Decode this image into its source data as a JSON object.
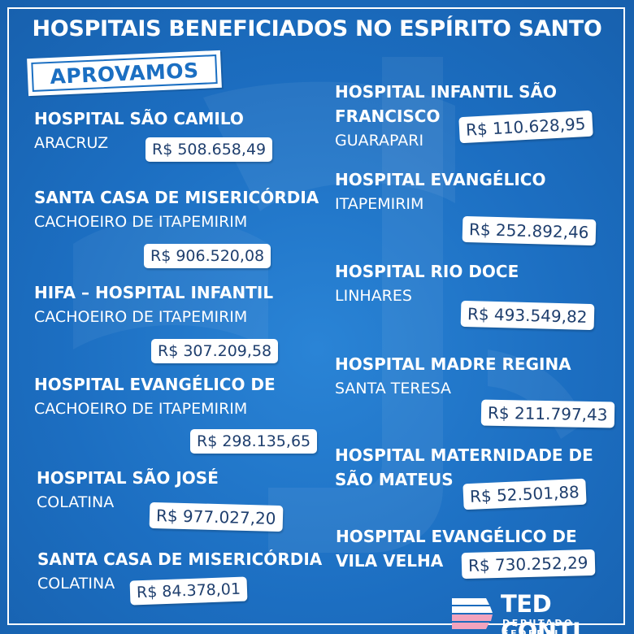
{
  "title": "HOSPITAIS BENEFICIADOS NO ESPÍRITO SANTO",
  "badge": "APROVAMOS",
  "hospitals": [
    {
      "name": "HOSPITAL SÃO CAMILO",
      "city": "ARACRUZ",
      "amount": "R$ 508.658,49"
    },
    {
      "name": "SANTA CASA DE MISERICÓRDIA",
      "city": "CACHOEIRO DE ITAPEMIRIM",
      "amount": "R$ 906.520,08"
    },
    {
      "name": "HIFA – HOSPITAL INFANTIL",
      "city": "CACHOEIRO DE ITAPEMIRIM",
      "amount": "R$ 307.209,58"
    },
    {
      "name": "HOSPITAL EVANGÉLICO DE",
      "city": "CACHOEIRO DE ITAPEMIRIM",
      "amount": "R$ 298.135,65"
    },
    {
      "name": "HOSPITAL SÃO JOSÉ",
      "city": "COLATINA",
      "amount": "R$ 977.027,20"
    },
    {
      "name": "SANTA CASA DE MISERICÓRDIA",
      "city": "COLATINA",
      "amount": "R$ 84.378,01"
    },
    {
      "name_line1": "HOSPITAL INFANTIL SÃO",
      "name_line2": "FRANCISCO",
      "city": "GUARAPARI",
      "amount": "R$ 110.628,95"
    },
    {
      "name": "HOSPITAL EVANGÉLICO",
      "city": "ITAPEMIRIM",
      "amount": "R$ 252.892,46"
    },
    {
      "name": "HOSPITAL RIO DOCE",
      "city": "LINHARES",
      "amount": "R$ 493.549,82"
    },
    {
      "name": "HOSPITAL MADRE REGINA",
      "city": "SANTA TERESA",
      "amount": "R$ 211.797,43"
    },
    {
      "name_line1": "HOSPITAL MATERNIDADE DE",
      "name_line2": "SÃO MATEUS",
      "amount": "R$ 52.501,88"
    },
    {
      "name_line1": "HOSPITAL EVANGÉLICO DE",
      "name_line2": "VILA VELHA",
      "amount": "R$ 730.252,29"
    }
  ],
  "logo": {
    "name": "TED CONTI",
    "role": "DEPUTADO FEDERAL"
  },
  "colors": {
    "background": "#1b6fc2",
    "card": "#ffffff",
    "amount_text": "#1f3f6e",
    "logo_pink": "#f2a3bd"
  }
}
